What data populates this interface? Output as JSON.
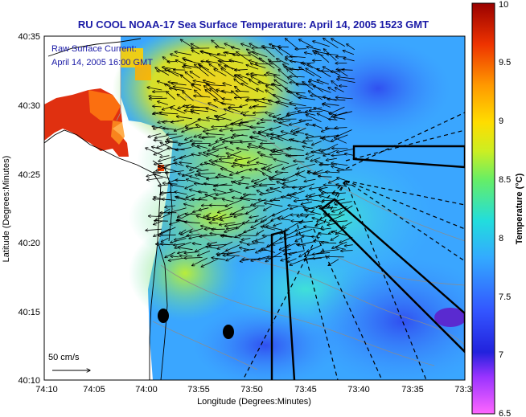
{
  "title": "RU COOL  NOAA-17  Sea Surface Temperature:  April 14, 2005 1523 GMT",
  "legend": {
    "line1": "Raw Surface Current:",
    "line2": "April 14, 2005 16:00 GMT"
  },
  "axes": {
    "xlabel": "Longitude (Degrees:Minutes)",
    "ylabel": "Latitude (Degrees:Minutes)",
    "xticks": [
      "74:10",
      "74:05",
      "74:00",
      "73:55",
      "73:50",
      "73:45",
      "73:40",
      "73:35",
      "73:3"
    ],
    "yticks": [
      "40:35",
      "40:30",
      "40:25",
      "40:20",
      "40:15",
      "40:10"
    ]
  },
  "colorbar": {
    "label": "Temperature (°C)",
    "ticks": [
      "10",
      "9.5",
      "9",
      "8.5",
      "8",
      "7.5",
      "7",
      "6.5"
    ],
    "min": 6.5,
    "max": 10
  },
  "scale_arrow": {
    "label": "50 cm/s"
  },
  "colors": {
    "land": "#ffffff",
    "title": "#1a1aa6",
    "arrows": "#000000",
    "bathymetry": "#8c8c8c"
  }
}
